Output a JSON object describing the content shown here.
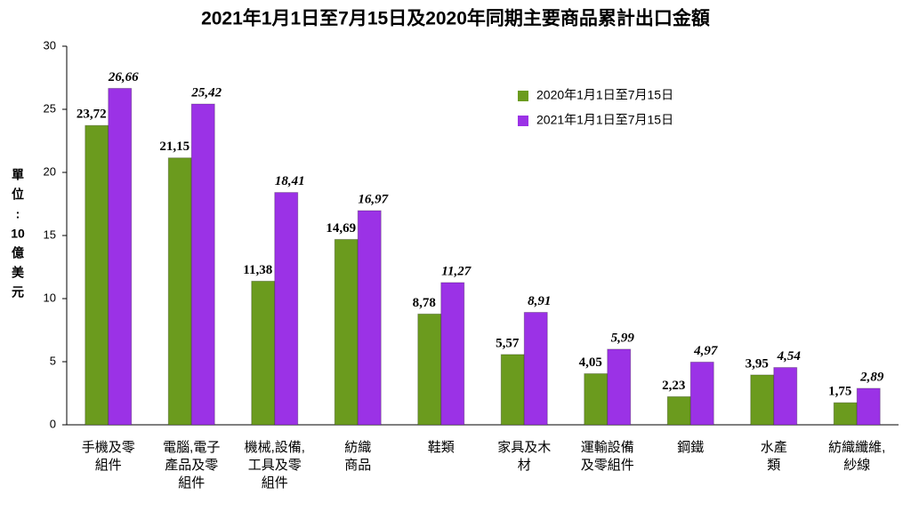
{
  "chart_data": {
    "type": "bar",
    "title": "2021年1月1日至7月15日及2020年同期主要商品累計出口金額",
    "y_label": [
      "單",
      "位",
      ":",
      "10",
      "億",
      "美",
      "元"
    ],
    "categories": [
      [
        "手機及零",
        "組件"
      ],
      [
        "電腦,電子",
        "產品及零",
        "組件"
      ],
      [
        "機械,設備,",
        "工具及零",
        "組件"
      ],
      [
        "紡織",
        "商品"
      ],
      [
        "鞋類"
      ],
      [
        "家具及木",
        "材"
      ],
      [
        "運輸設備",
        "及零組件"
      ],
      [
        "鋼鐵"
      ],
      [
        "水產",
        "類"
      ],
      [
        "紡織纖維,",
        "紗線"
      ]
    ],
    "series": [
      {
        "name": "2020年1月1日至7月15日",
        "color": "#6b9b1e",
        "values": [
          23.72,
          21.15,
          11.38,
          14.69,
          8.78,
          5.57,
          4.05,
          2.23,
          3.95,
          1.75
        ],
        "value_labels": [
          "23,72",
          "21,15",
          "11,38",
          "14,69",
          "8,78",
          "5,57",
          "4,05",
          "2,23",
          "3,95",
          "1,75"
        ]
      },
      {
        "name": "2021年1月1日至7月15日",
        "color": "#9b32e6",
        "values": [
          26.66,
          25.42,
          18.41,
          16.97,
          11.27,
          8.91,
          5.99,
          4.97,
          4.54,
          2.89
        ],
        "value_labels": [
          "26,66",
          "25,42",
          "18,41",
          "16,97",
          "11,27",
          "8,91",
          "5,99",
          "4,97",
          "4,54",
          "2,89"
        ]
      }
    ],
    "ylim": [
      0,
      30
    ],
    "yticks": [
      0,
      5,
      10,
      15,
      20,
      25,
      30
    ],
    "grid": false
  }
}
